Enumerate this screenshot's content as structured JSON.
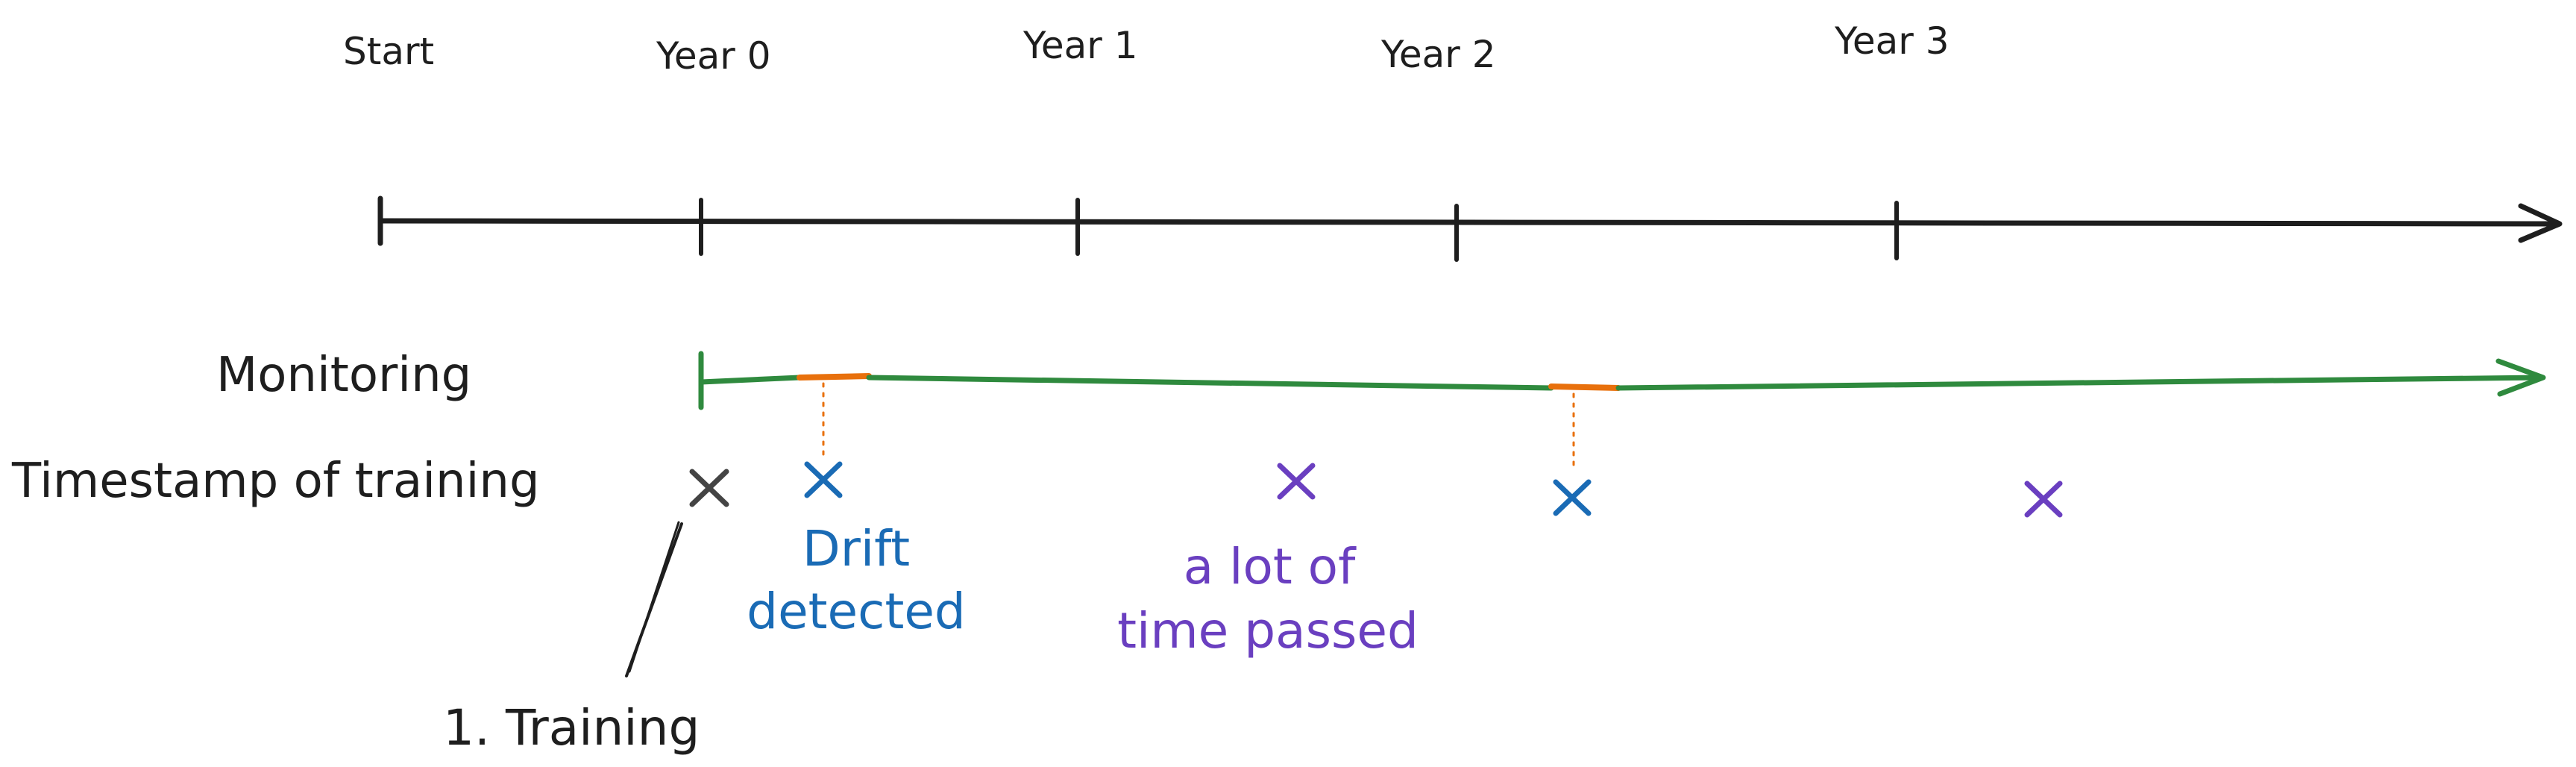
{
  "timeline": {
    "ticks": [
      "Start",
      "Year 0",
      "Year 1",
      "Year 2",
      "Year 3"
    ]
  },
  "rows": {
    "monitoring": "Monitoring",
    "training": "Timestamp of training"
  },
  "notes": {
    "drift_1": "Drift",
    "drift_2": "detected",
    "time_1": "a lot of",
    "time_2": "time passed"
  },
  "annotations": {
    "training": "1. Training"
  },
  "colors": {
    "axis": "#1e1e1e",
    "monitoring": "#2f8a3e",
    "drift_segment": "#e8700c",
    "initial_marker": "#444444",
    "drift_marker": "#1a6bb5",
    "retrain_marker": "#6a3fc0",
    "drift_text": "#1a6bb5",
    "time_text": "#6a3fc0"
  },
  "markers": [
    {
      "kind": "initial_training",
      "icon": "x-mark-icon"
    },
    {
      "kind": "drift_retrain",
      "icon": "x-mark-icon"
    },
    {
      "kind": "scheduled_retrain",
      "icon": "x-mark-icon"
    },
    {
      "kind": "drift_retrain",
      "icon": "x-mark-icon"
    },
    {
      "kind": "scheduled_retrain",
      "icon": "x-mark-icon"
    }
  ]
}
